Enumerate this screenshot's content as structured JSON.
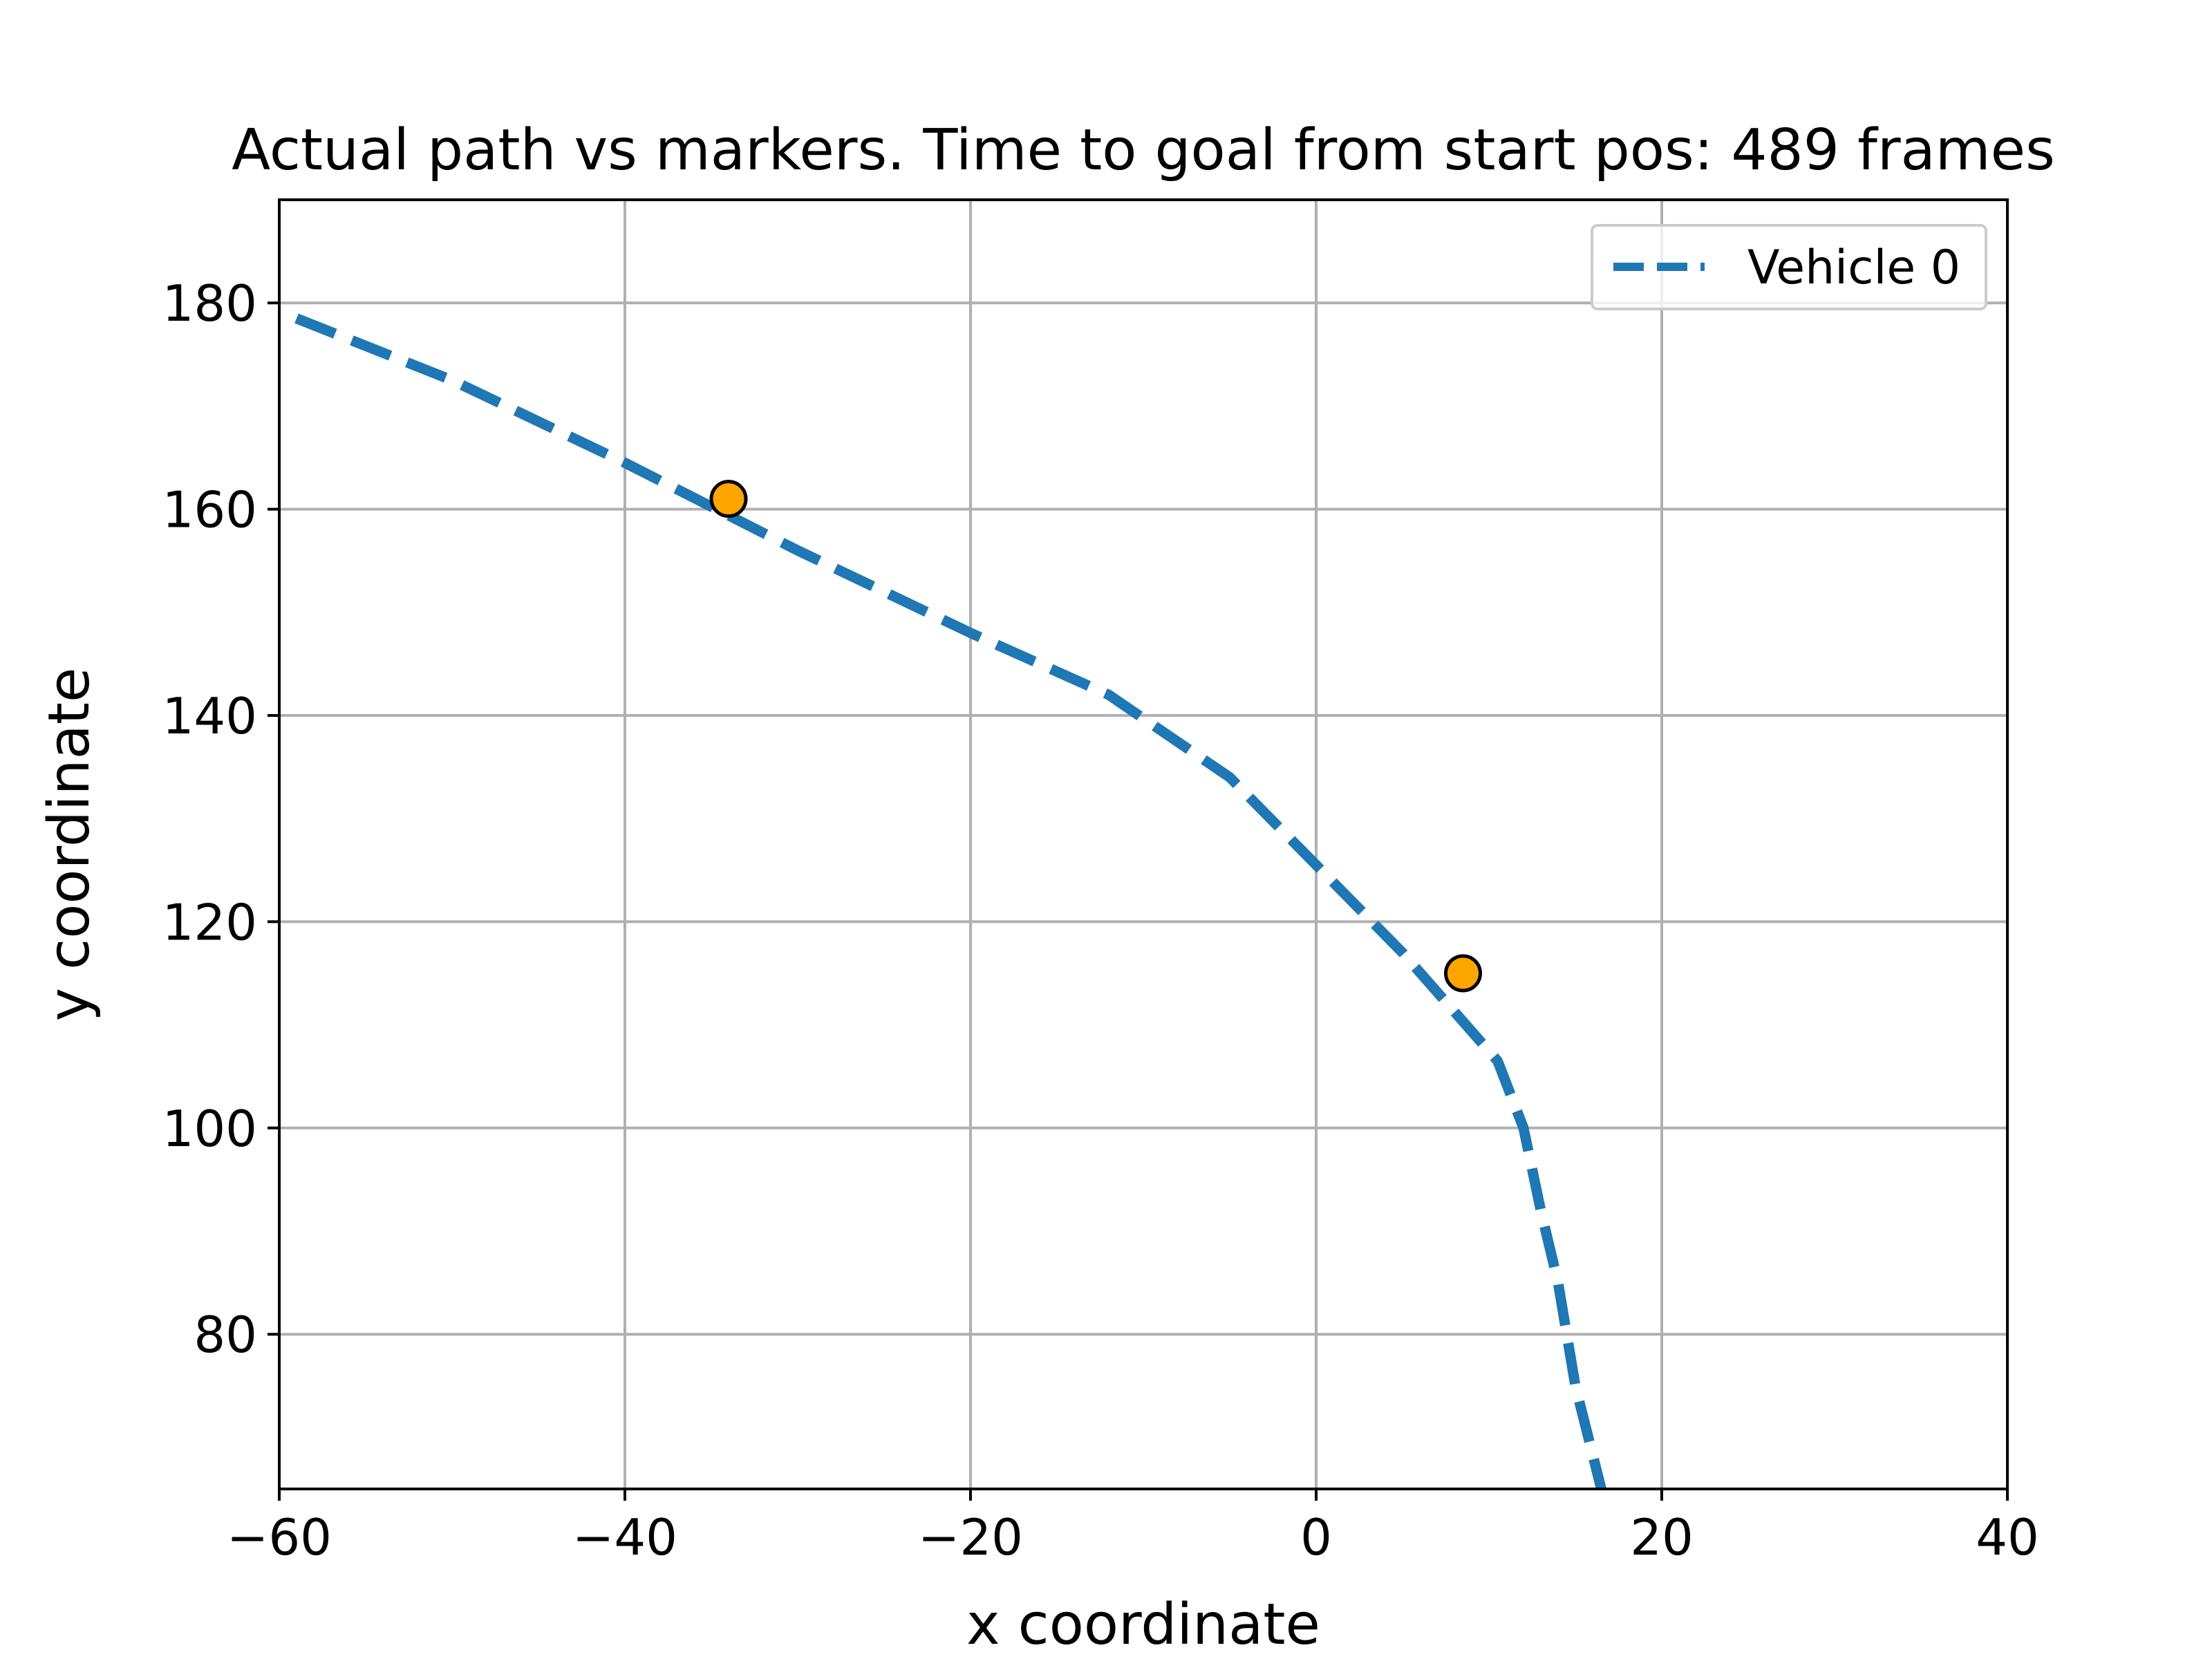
{
  "chart_data": {
    "type": "line",
    "title": "Actual path vs markers. Time to goal from start pos: 489 frames",
    "xlabel": "x coordinate",
    "ylabel": "y coordinate",
    "xlim": [
      -60,
      40
    ],
    "ylim": [
      65,
      190
    ],
    "xticks": [
      -60,
      -40,
      -20,
      0,
      20,
      40
    ],
    "xtick_labels": [
      "−60",
      "−40",
      "−20",
      "0",
      "20",
      "40"
    ],
    "yticks": [
      80,
      100,
      120,
      140,
      160,
      180
    ],
    "ytick_labels": [
      "80",
      "100",
      "120",
      "140",
      "160",
      "180"
    ],
    "grid": true,
    "legend": {
      "position": "upper right",
      "entries": [
        "Vehicle 0"
      ]
    },
    "series": [
      {
        "name": "Vehicle 0",
        "color": "#1f77b4",
        "style": "dashed",
        "x": [
          -59,
          -50,
          -40,
          -30,
          -20,
          -12,
          -5,
          0,
          5,
          10.5,
          12,
          13,
          14,
          15,
          16.5
        ],
        "y": [
          178.5,
          172.5,
          164.5,
          156,
          148,
          142,
          134,
          125.5,
          117,
          106.5,
          100,
          92,
          85,
          75,
          65
        ]
      }
    ],
    "markers": {
      "color": "#ffa500",
      "edge_color": "#000000",
      "points": [
        {
          "x": -34,
          "y": 161
        },
        {
          "x": 8.5,
          "y": 115
        }
      ]
    }
  }
}
